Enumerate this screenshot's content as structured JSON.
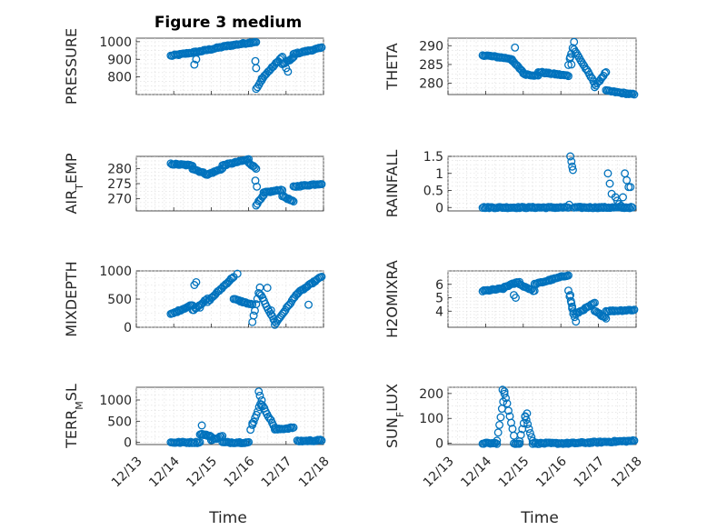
{
  "chart_data": {
    "type": "scatter",
    "title": "Figure 3 medium",
    "marker_color": "#0072bd",
    "x_tick_labels": [
      "12/13",
      "12/14",
      "12/15",
      "12/16",
      "12/17",
      "12/18"
    ],
    "xlim": [
      0,
      5
    ],
    "xlabel": "Time",
    "subplots": [
      {
        "id": "pressure",
        "ylabel": "PRESSURE",
        "ylim": [
          700,
          1020
        ],
        "yticks": [
          800,
          900,
          1000
        ],
        "ytick_labels": [
          "800",
          "900",
          "1000"
        ],
        "segments": [
          [
            0.92,
            1.7,
            920,
            945
          ],
          [
            1.7,
            2.4,
            945,
            975
          ],
          [
            2.4,
            3.2,
            975,
            1000
          ],
          [
            3.2,
            3.35,
            730,
            780
          ],
          [
            3.35,
            3.9,
            790,
            915
          ],
          [
            3.9,
            4.2,
            870,
            910
          ],
          [
            4.2,
            4.95,
            930,
            965
          ]
        ],
        "points": [
          [
            1.55,
            870
          ],
          [
            1.6,
            900
          ],
          [
            3.18,
            890
          ],
          [
            3.2,
            850
          ],
          [
            4.0,
            850
          ],
          [
            4.05,
            830
          ]
        ]
      },
      {
        "id": "theta",
        "ylabel": "THETA",
        "ylim": [
          277,
          292
        ],
        "yticks": [
          280,
          285,
          290
        ],
        "ytick_labels": [
          "280",
          "285",
          "290"
        ],
        "segments": [
          [
            0.92,
            1.7,
            287.5,
            286.5
          ],
          [
            1.7,
            2.0,
            286,
            283
          ],
          [
            2.0,
            2.4,
            282.5,
            282
          ],
          [
            2.4,
            3.2,
            283,
            282
          ],
          [
            3.2,
            3.35,
            285,
            291
          ],
          [
            3.35,
            3.9,
            289,
            280
          ],
          [
            3.9,
            4.2,
            279,
            283
          ],
          [
            4.2,
            4.95,
            278,
            277
          ]
        ],
        "points": [
          [
            1.78,
            289.5
          ],
          [
            3.25,
            287
          ],
          [
            3.28,
            285
          ]
        ]
      },
      {
        "id": "air_temp",
        "ylabel": "AIR_TEMP",
        "ylim": [
          266,
          284
        ],
        "yticks": [
          270,
          275,
          280
        ],
        "ytick_labels": [
          "270",
          "275",
          "280"
        ],
        "segments": [
          [
            0.92,
            1.5,
            281.5,
            281
          ],
          [
            1.5,
            1.9,
            280,
            278
          ],
          [
            1.9,
            2.3,
            278,
            280
          ],
          [
            2.3,
            3.0,
            281,
            283
          ],
          [
            3.0,
            3.2,
            282,
            280
          ],
          [
            3.2,
            3.4,
            268,
            271
          ],
          [
            3.4,
            3.9,
            272,
            273
          ],
          [
            3.9,
            4.2,
            271,
            269
          ],
          [
            4.2,
            4.95,
            274,
            275
          ]
        ],
        "points": [
          [
            3.18,
            276
          ],
          [
            3.22,
            274
          ]
        ]
      },
      {
        "id": "rainfall",
        "ylabel": "RAINFALL",
        "ylim": [
          -0.1,
          1.5
        ],
        "yticks": [
          0,
          0.5,
          1,
          1.5
        ],
        "ytick_labels": [
          "0",
          "0.5",
          "1",
          "1.5"
        ],
        "segments": [
          [
            0.92,
            3.2,
            0,
            0
          ],
          [
            3.35,
            4.9,
            0,
            0
          ]
        ],
        "points": [
          [
            3.22,
            0.08
          ],
          [
            3.25,
            1.5
          ],
          [
            3.28,
            1.35
          ],
          [
            3.3,
            1.2
          ],
          [
            3.32,
            1.1
          ],
          [
            4.25,
            1.0
          ],
          [
            4.3,
            0.7
          ],
          [
            4.35,
            0.4
          ],
          [
            4.45,
            0.3
          ],
          [
            4.55,
            0.1
          ],
          [
            4.6,
            0.05
          ],
          [
            4.7,
            1.0
          ],
          [
            4.75,
            0.8
          ],
          [
            4.8,
            0.6
          ],
          [
            4.85,
            0.6
          ],
          [
            4.65,
            0.3
          ],
          [
            4.5,
            0.2
          ]
        ]
      },
      {
        "id": "mixdepth",
        "ylabel": "MIXDEPTH",
        "ylim": [
          0,
          1000
        ],
        "yticks": [
          0,
          500,
          1000
        ],
        "ytick_labels": [
          "0",
          "500",
          "1000"
        ],
        "segments": [
          [
            0.92,
            1.5,
            230,
            400
          ],
          [
            1.5,
            1.9,
            300,
            500
          ],
          [
            1.9,
            2.6,
            450,
            900
          ],
          [
            2.6,
            3.1,
            500,
            400
          ],
          [
            3.1,
            3.3,
            100,
            700
          ],
          [
            3.3,
            3.7,
            600,
            100
          ],
          [
            3.7,
            4.3,
            50,
            600
          ],
          [
            4.3,
            4.95,
            600,
            900
          ]
        ],
        "points": [
          [
            1.55,
            750
          ],
          [
            1.6,
            800
          ],
          [
            1.7,
            350
          ],
          [
            2.7,
            950
          ],
          [
            3.5,
            700
          ],
          [
            3.6,
            300
          ],
          [
            4.6,
            400
          ]
        ]
      },
      {
        "id": "h2omixra",
        "ylabel": "H2OMIXRA",
        "ylim": [
          2.8,
          7.0
        ],
        "yticks": [
          4,
          5,
          6
        ],
        "ytick_labels": [
          "4",
          "5",
          "6"
        ],
        "segments": [
          [
            0.92,
            1.5,
            5.5,
            5.7
          ],
          [
            1.5,
            1.9,
            5.8,
            6.2
          ],
          [
            1.9,
            2.3,
            6.0,
            5.5
          ],
          [
            2.3,
            3.2,
            6.0,
            6.7
          ],
          [
            3.2,
            3.4,
            5.5,
            3.2
          ],
          [
            3.4,
            3.9,
            3.8,
            4.6
          ],
          [
            3.9,
            4.2,
            4.0,
            3.5
          ],
          [
            4.2,
            4.95,
            4.0,
            4.1
          ]
        ],
        "points": [
          [
            1.75,
            5.2
          ],
          [
            1.8,
            5.0
          ],
          [
            3.25,
            5.2
          ],
          [
            3.28,
            4.6
          ],
          [
            3.3,
            4.2
          ],
          [
            3.33,
            3.8
          ]
        ]
      },
      {
        "id": "terr_msl",
        "ylabel": "TERR_MSL",
        "ylim": [
          -50,
          1300
        ],
        "yticks": [
          0,
          500,
          1000
        ],
        "ytick_labels": [
          "0",
          "500",
          "1000"
        ],
        "segments": [
          [
            0.92,
            1.7,
            0,
            0
          ],
          [
            1.7,
            2.0,
            200,
            150
          ],
          [
            2.0,
            2.3,
            50,
            150
          ],
          [
            2.3,
            3.0,
            0,
            0
          ],
          [
            3.1,
            3.35,
            400,
            1000
          ],
          [
            3.35,
            3.7,
            900,
            350
          ],
          [
            3.7,
            4.2,
            300,
            350
          ],
          [
            4.3,
            4.95,
            30,
            50
          ]
        ],
        "points": [
          [
            1.75,
            400
          ],
          [
            3.05,
            300
          ],
          [
            3.1,
            450
          ],
          [
            3.27,
            1200
          ],
          [
            3.3,
            1100
          ]
        ]
      },
      {
        "id": "sun_flux",
        "ylabel": "SUN_FLUX",
        "ylim": [
          -5,
          225
        ],
        "yticks": [
          0,
          100,
          200
        ],
        "ytick_labels": [
          "0",
          "100",
          "200"
        ],
        "segments": [
          [
            0.92,
            1.3,
            0,
            0
          ],
          [
            1.3,
            1.5,
            10,
            200
          ],
          [
            1.5,
            1.75,
            210,
            30
          ],
          [
            1.75,
            1.9,
            0,
            0
          ],
          [
            1.9,
            2.05,
            10,
            105
          ],
          [
            2.05,
            2.25,
            110,
            10
          ],
          [
            2.25,
            3.2,
            0,
            0
          ],
          [
            3.2,
            4.95,
            0,
            10
          ]
        ],
        "points": [
          [
            1.45,
            215
          ],
          [
            2.1,
            120
          ]
        ]
      }
    ]
  }
}
